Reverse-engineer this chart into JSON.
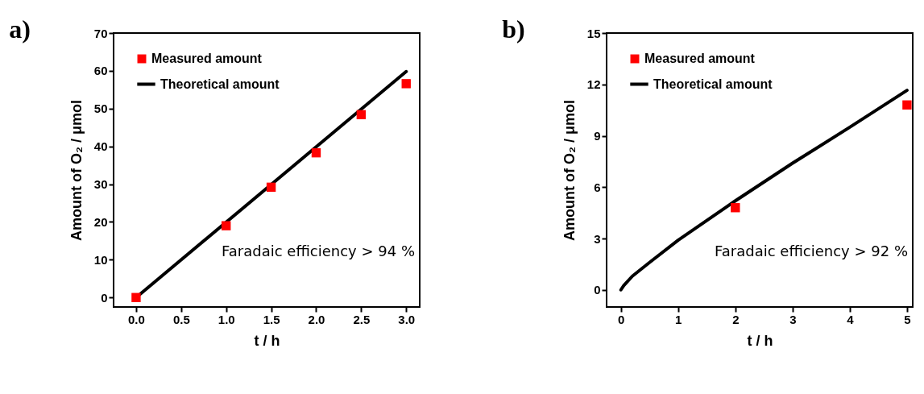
{
  "chart_data": [
    {
      "type": "scatter",
      "title": "a)",
      "xlabel": "t / h",
      "ylabel": "Amount of O₂ / μmol",
      "xlim": [
        -0.25,
        3.15
      ],
      "ylim": [
        -2.5,
        70
      ],
      "xticks": [
        {
          "value": 0,
          "label": "0.0"
        },
        0.5,
        {
          "value": 1,
          "label": "1.0"
        },
        1.5,
        {
          "value": 2,
          "label": "2.0"
        },
        2.5,
        {
          "value": 3,
          "label": "3.0"
        }
      ],
      "yticks": [
        0,
        10,
        20,
        30,
        40,
        50,
        60,
        70
      ],
      "grid": false,
      "legend": "top left",
      "annotations": [
        "Faradaic  efficiency > 94 %"
      ],
      "series": [
        {
          "name": "Measured amount",
          "type": "scatter",
          "marker": "square",
          "color": "#ff0000",
          "x": [
            0,
            1,
            1.5,
            2,
            2.5,
            3
          ],
          "values": [
            0,
            19,
            29.2,
            38.3,
            48.4,
            56.6
          ]
        },
        {
          "name": "Theoretical amount",
          "type": "line",
          "color": "#000000",
          "x": [
            0,
            3
          ],
          "values": [
            0,
            59.8
          ]
        }
      ]
    },
    {
      "type": "scatter",
      "title": "b)",
      "xlabel": "t / h",
      "ylabel": "Amount of O₂ / μmol",
      "xlim": [
        -0.25,
        5.1
      ],
      "ylim": [
        -1,
        15
      ],
      "xticks": [
        0,
        1,
        2,
        3,
        4,
        5
      ],
      "yticks": [
        0,
        3,
        6,
        9,
        12,
        15
      ],
      "grid": false,
      "legend": "top left",
      "annotations": [
        "Faradaic  efficiency > 92 %"
      ],
      "series": [
        {
          "name": "Measured amount",
          "type": "scatter",
          "marker": "square",
          "color": "#ff0000",
          "x": [
            2,
            5
          ],
          "values": [
            4.8,
            10.8
          ]
        },
        {
          "name": "Theoretical amount",
          "type": "line",
          "color": "#000000",
          "x": [
            0,
            0.05,
            0.2,
            0.5,
            1,
            2,
            3,
            4,
            5
          ],
          "values": [
            0,
            0.25,
            0.8,
            1.6,
            2.9,
            5.2,
            7.4,
            9.5,
            11.65
          ]
        }
      ]
    }
  ]
}
